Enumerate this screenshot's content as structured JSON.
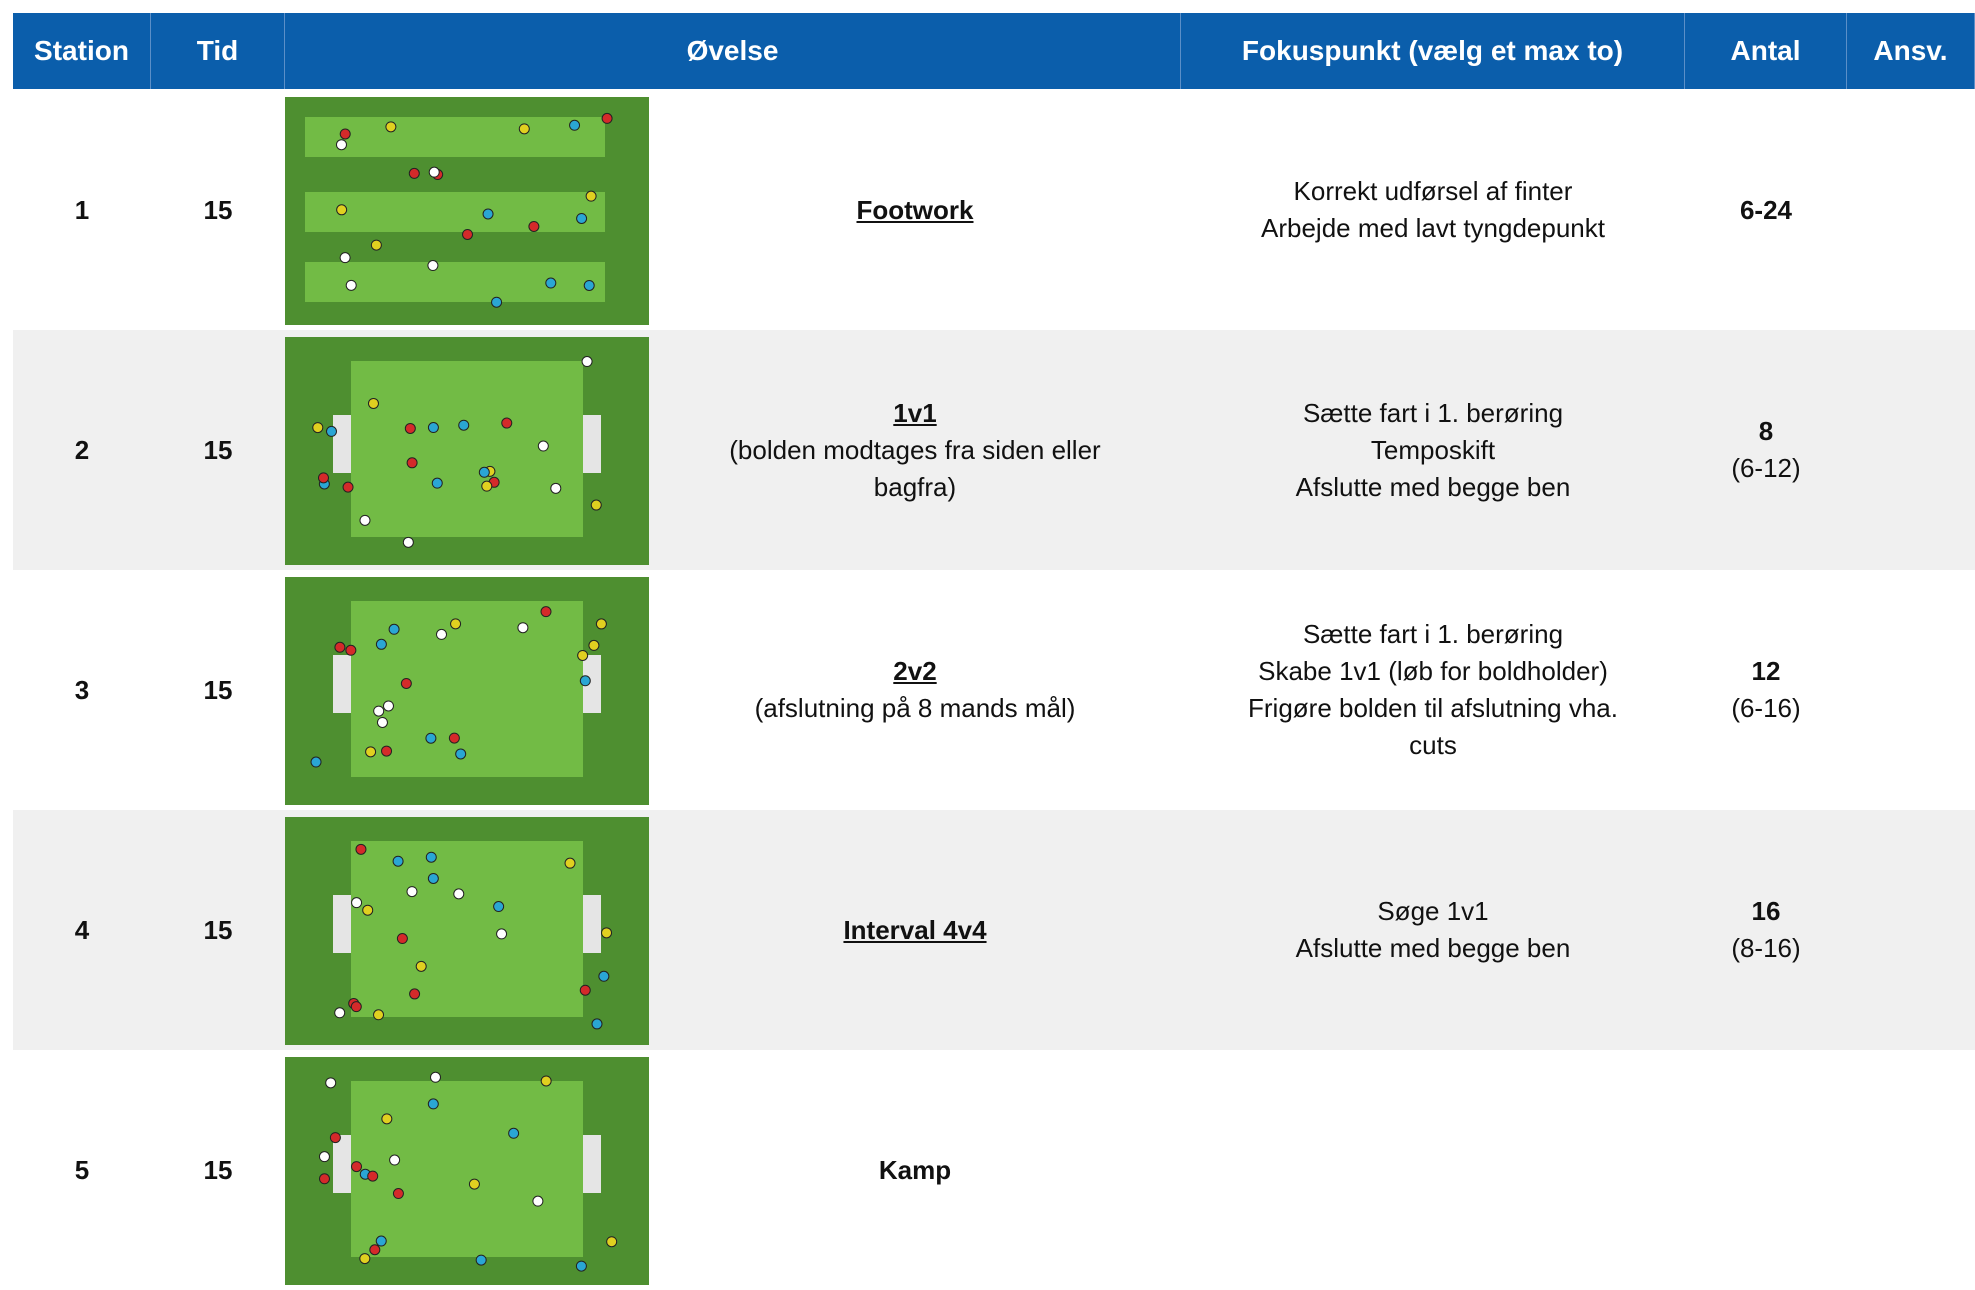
{
  "header": [
    "Station",
    "Tid",
    "Øvelse",
    "Fokuspunkt (vælg et max to)",
    "Antal",
    "Ansv."
  ],
  "rows": [
    {
      "station": "1",
      "tid": "15",
      "exercise": {
        "title": "Footwork",
        "underline": true
      },
      "focus": [
        "Korrekt udførsel af finter",
        "Arbejde med lavt tyngdepunkt"
      ],
      "antal": {
        "main": "6-24"
      }
    },
    {
      "station": "2",
      "tid": "15",
      "exercise": {
        "title": "1v1",
        "underline": true,
        "sub": [
          "(bolden modtages fra siden eller",
          "bagfra)"
        ]
      },
      "focus": [
        "Sætte fart i 1. berøring",
        "Temposkift",
        "Afslutte med begge ben"
      ],
      "antal": {
        "main": "8",
        "sub": "(6-12)"
      }
    },
    {
      "station": "3",
      "tid": "15",
      "exercise": {
        "title": "2v2",
        "underline": true,
        "sub": [
          "(afslutning på 8 mands mål)"
        ]
      },
      "focus": [
        "Sætte fart i 1. berøring",
        "Skabe 1v1 (løb for boldholder)",
        "Frigøre bolden til afslutning vha.",
        "cuts"
      ],
      "antal": {
        "main": "12",
        "sub": "(6-16)"
      }
    },
    {
      "station": "4",
      "tid": "15",
      "exercise": {
        "title": "Interval 4v4",
        "underline": true
      },
      "focus": [
        "Søge 1v1",
        "Afslutte med begge ben"
      ],
      "antal": {
        "main": "16",
        "sub": "(8-16)"
      }
    },
    {
      "station": "5",
      "tid": "15",
      "exercise": {
        "title": "Kamp",
        "underline": false
      }
    }
  ]
}
